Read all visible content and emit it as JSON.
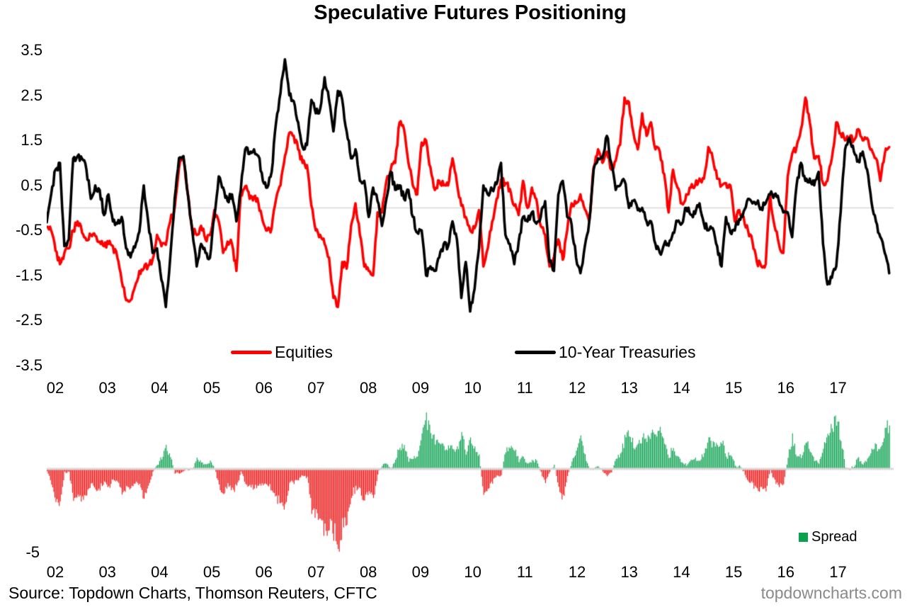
{
  "title": "Speculative Futures Positioning",
  "source_line": "Source: Topdown Charts, Thomson Reuters, CFTC",
  "watermark": "topdowncharts.com",
  "colors": {
    "equities": "#fe0000",
    "treasuries": "#000000",
    "spread_positive": "#0ba14f",
    "spread_negative": "#ed1111",
    "zero_line": "#d9d9d9",
    "watermark_gray": "#8a8a8a"
  },
  "chart_data": [
    {
      "type": "line",
      "title": "Speculative Futures Positioning",
      "x_start_year": 2002,
      "points_per_year": 12,
      "ylim": [
        -3.5,
        3.5
      ],
      "y_tick_labels": [
        "3.5",
        "2.5",
        "1.5",
        "0.5",
        "-0.5",
        "-1.5",
        "-2.5",
        "-3.5"
      ],
      "x_tick_labels": [
        "02",
        "03",
        "04",
        "05",
        "06",
        "07",
        "08",
        "09",
        "10",
        "11",
        "12",
        "13",
        "14",
        "15",
        "16",
        "17"
      ],
      "gridline": "zero-only",
      "legend_position": "bottom-inside",
      "series": [
        {
          "name": "Equities",
          "color": "#fe0000",
          "values": [
            -0.42,
            -0.5,
            -0.95,
            -1.25,
            -1.0,
            -0.9,
            -0.5,
            -0.3,
            -0.55,
            -0.72,
            -0.6,
            -0.62,
            -0.75,
            -0.85,
            -0.8,
            -0.85,
            -1.1,
            -1.62,
            -2.05,
            -2.05,
            -1.75,
            -1.4,
            -1.35,
            -1.28,
            -1.15,
            -0.6,
            -0.85,
            -0.82,
            -0.3,
            0.0,
            0.9,
            1.1,
            0.3,
            -0.5,
            -0.6,
            -0.4,
            -0.7,
            -0.6,
            -0.05,
            -0.3,
            -1.0,
            -0.75,
            -0.8,
            -1.4,
            0.3,
            0.48,
            0.2,
            0.25,
            0.1,
            -0.3,
            -0.5,
            -0.45,
            0.2,
            0.5,
            1.15,
            1.67,
            1.6,
            1.3,
            1.0,
            0.95,
            0.05,
            -0.5,
            -0.6,
            -0.8,
            -1.1,
            -2.0,
            -2.2,
            -1.2,
            -1.35,
            -0.4,
            0.1,
            -0.6,
            -1.3,
            -1.4,
            -1.5,
            -0.1,
            -0.1,
            0.6,
            0.85,
            1.0,
            1.9,
            1.75,
            1.0,
            0.5,
            0.3,
            1.45,
            1.5,
            0.9,
            0.4,
            0.6,
            0.5,
            0.5,
            1.1,
            0.55,
            0.05,
            -0.2,
            -0.5,
            -0.45,
            -0.05,
            -1.3,
            -0.9,
            -0.3,
            0.2,
            0.63,
            0.55,
            0.42,
            0.05,
            -0.16,
            0.6,
            0.0,
            0.45,
            0.2,
            -0.4,
            -0.6,
            -1.3,
            -1.1,
            -0.7,
            -1.15,
            -0.5,
            0.1,
            0.1,
            0.3,
            -0.03,
            -0.3,
            0.9,
            1.3,
            1.0,
            1.25,
            0.85,
            1.05,
            1.4,
            2.45,
            2.35,
            1.68,
            1.3,
            2.1,
            1.6,
            1.9,
            1.3,
            1.25,
            0.75,
            -0.1,
            0.85,
            0.45,
            0.1,
            0.3,
            0.45,
            0.5,
            0.65,
            0.65,
            1.35,
            1.1,
            0.65,
            0.5,
            0.55,
            0.5,
            -0.3,
            -0.05,
            -0.2,
            -0.5,
            -0.75,
            -1.2,
            -1.3,
            -1.25,
            0.3,
            -0.4,
            -0.8,
            -1.0,
            0.7,
            1.2,
            1.35,
            1.75,
            2.45,
            1.9,
            1.1,
            1.15,
            0.55,
            0.6,
            1.1,
            1.9,
            1.65,
            1.5,
            1.55,
            1.5,
            1.75,
            1.5,
            1.55,
            1.3,
            1.1,
            0.6,
            1.2,
            1.35
          ]
        },
        {
          "name": "10-Year Treasuries",
          "color": "#000000",
          "values": [
            -0.32,
            0.3,
            0.85,
            1.0,
            -0.85,
            -0.7,
            1.1,
            1.15,
            1.1,
            0.85,
            0.2,
            0.5,
            0.4,
            -0.16,
            0.3,
            -0.3,
            -0.35,
            -0.2,
            -0.9,
            -1.1,
            -0.88,
            -0.53,
            0.5,
            -0.3,
            -1.0,
            -0.9,
            -1.6,
            -2.2,
            -1.1,
            0.2,
            1.11,
            1.15,
            0.3,
            -0.5,
            -1.3,
            -0.8,
            -1.0,
            -1.11,
            -0.2,
            0.7,
            0.45,
            0.15,
            0.3,
            -0.3,
            0.4,
            1.3,
            1.2,
            1.3,
            1.15,
            0.6,
            0.45,
            0.8,
            1.9,
            2.55,
            3.3,
            2.5,
            2.37,
            1.9,
            1.35,
            1.4,
            2.4,
            2.1,
            2.2,
            2.9,
            2.4,
            1.7,
            2.6,
            2.4,
            1.7,
            1.1,
            1.3,
            0.6,
            0.6,
            -0.2,
            0.45,
            0.15,
            -0.4,
            0.2,
            0.8,
            0.4,
            0.5,
            0.2,
            0.4,
            -0.2,
            -0.55,
            -0.5,
            -1.5,
            -1.3,
            -1.4,
            -1.1,
            -0.8,
            -0.85,
            -0.3,
            -0.7,
            -2.0,
            -1.2,
            -2.3,
            -1.8,
            -0.9,
            0.5,
            0.3,
            0.4,
            0.53,
            1.0,
            -0.6,
            -0.8,
            -1.25,
            -0.75,
            -0.2,
            -0.3,
            -0.1,
            -0.35,
            -0.2,
            0.15,
            -1.2,
            -1.4,
            0.3,
            0.6,
            -0.2,
            -0.37,
            -1.1,
            -1.45,
            -0.85,
            -0.3,
            0.85,
            1.1,
            1.1,
            1.6,
            1.0,
            0.4,
            0.5,
            0.6,
            0.0,
            0.16,
            -0.05,
            0.0,
            -0.3,
            -0.3,
            -0.8,
            -1.0,
            -0.8,
            -0.84,
            -0.55,
            -0.3,
            -0.35,
            0.0,
            -0.15,
            -0.13,
            0.1,
            -0.35,
            -0.5,
            -0.45,
            -0.85,
            -1.3,
            -0.2,
            -0.55,
            -0.5,
            -0.25,
            -0.08,
            0.2,
            0.1,
            0.1,
            0.0,
            0.1,
            0.3,
            0.3,
            0.15,
            -0.1,
            -0.1,
            -0.65,
            0.5,
            1.0,
            0.6,
            0.65,
            0.5,
            0.8,
            -0.8,
            -1.7,
            -1.55,
            -1.3,
            -0.1,
            1.3,
            1.55,
            1.25,
            1.05,
            1.25,
            0.85,
            0.12,
            -0.3,
            -0.65,
            -1.0,
            -1.45
          ]
        }
      ]
    },
    {
      "type": "bar",
      "x_start_year": 2002,
      "ylim": [
        -5,
        3.5
      ],
      "y_min_label": "-5",
      "x_tick_labels": [
        "02",
        "03",
        "04",
        "05",
        "06",
        "07",
        "08",
        "09",
        "10",
        "11",
        "12",
        "13",
        "14",
        "15",
        "16",
        "17"
      ],
      "series": [
        {
          "name": "Spread",
          "derived_from": "Equities minus 10-Year Treasuries",
          "positive_color": "#0ba14f",
          "negative_color": "#ed1111"
        }
      ]
    }
  ]
}
